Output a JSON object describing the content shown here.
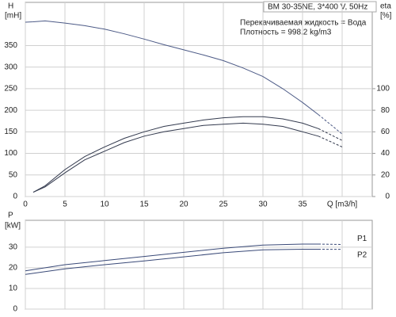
{
  "chart_data": [
    {
      "type": "line",
      "y_label": "H",
      "y_unit": "[mH]",
      "y2_label": "eta",
      "y2_unit": "[%]",
      "annotations": [
        "BM 30-35NE, 3*400 V, 50Hz",
        "Перекачиваемая жидкость = Вода",
        "Плотность = 998.2 kg/m3"
      ],
      "x": [
        0,
        1,
        2.5,
        5,
        7.5,
        10,
        12.5,
        15,
        17.5,
        20,
        22.5,
        25,
        27.5,
        30,
        32.5,
        35,
        37,
        40
      ],
      "xlim": [
        0,
        43.8
      ],
      "xticks": [
        0,
        5,
        10,
        15,
        20,
        25,
        30,
        35,
        {
          "value": 40,
          "label": "Q [m3/h]"
        }
      ],
      "ylim": [
        0,
        450
      ],
      "yticks": [
        0,
        50,
        100,
        150,
        200,
        250,
        300,
        350
      ],
      "y2lim": [
        0,
        180
      ],
      "y2ticks": [
        0,
        20,
        40,
        60,
        80,
        100
      ],
      "grid": true,
      "dashed_from": 37,
      "series": [
        {
          "name": "H",
          "color": "#4c5a86",
          "values": [
            404,
            405,
            407,
            402,
            396,
            388,
            377,
            365,
            352,
            340,
            328,
            315,
            298,
            278,
            250,
            218,
            190,
            145
          ]
        },
        {
          "name": "eta",
          "color": "#333a4e",
          "axis": "y2",
          "values": [
            null,
            4,
            10,
            25,
            37,
            46,
            54,
            60,
            65,
            68,
            71,
            73,
            74,
            74,
            72,
            68,
            63,
            52
          ]
        },
        {
          "name": "eta",
          "color": "#333a4e",
          "axis": "y2",
          "values": [
            null,
            4,
            9,
            22,
            34,
            42,
            50,
            56,
            60,
            63,
            66,
            67,
            68,
            67,
            65,
            60,
            56,
            46
          ]
        }
      ]
    },
    {
      "type": "line",
      "y_label": "P",
      "y_unit": "[kW]",
      "x": [
        0,
        5,
        10,
        15,
        20,
        25,
        30,
        35,
        37,
        40
      ],
      "ylim": [
        0,
        43
      ],
      "yticks": [
        0,
        10,
        20,
        30
      ],
      "grid": true,
      "dashed_from": 37,
      "series": [
        {
          "name": "P1",
          "color": "#3a4a78",
          "values": [
            18.5,
            21.5,
            23.5,
            25.5,
            27.5,
            29.5,
            31,
            31.5,
            31.5,
            31.3
          ]
        },
        {
          "name": "P2",
          "color": "#3a4a78",
          "values": [
            16.8,
            19.5,
            21.5,
            23.3,
            25.3,
            27.3,
            28.7,
            29,
            29,
            28.9
          ]
        }
      ]
    }
  ]
}
